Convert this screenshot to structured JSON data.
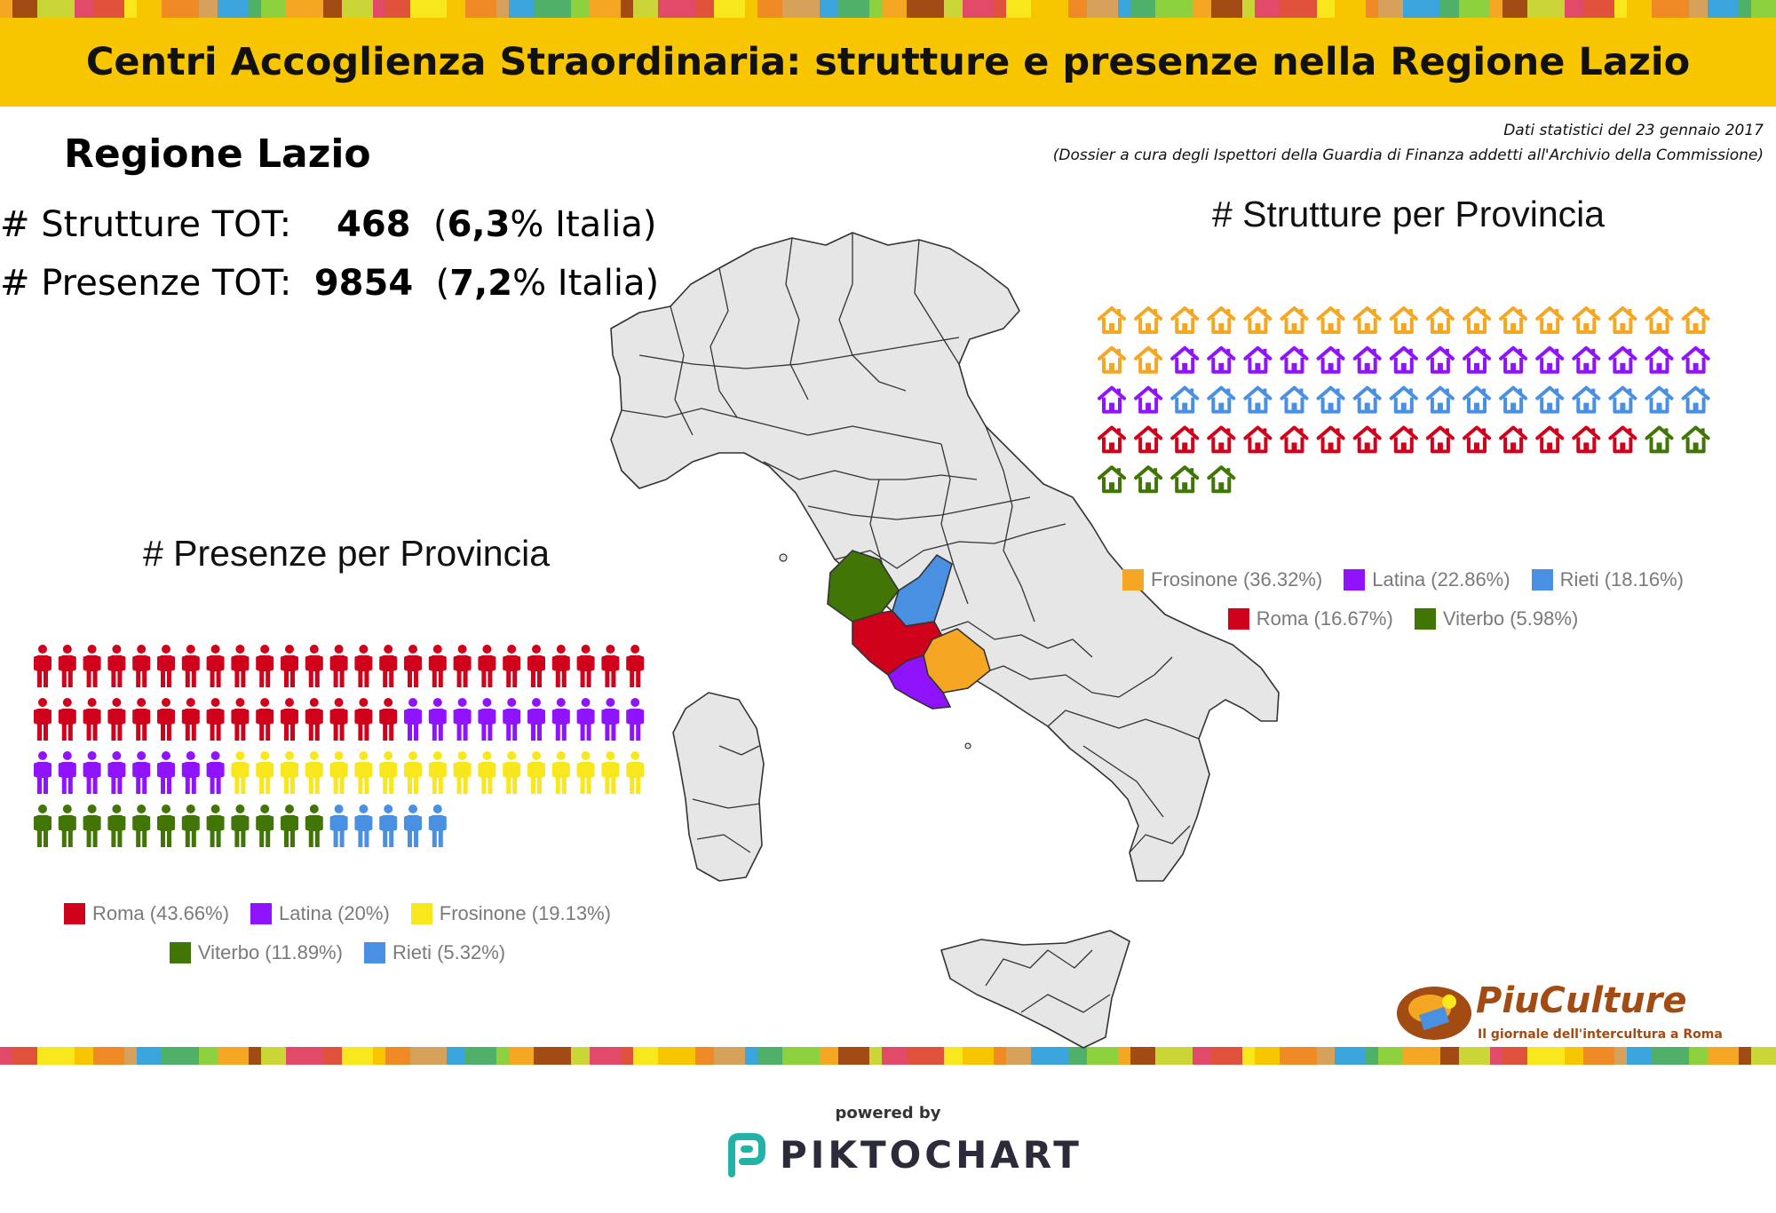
{
  "header": {
    "title": "Centri Accoglienza Straordinaria: strutture e presenze nella Regione Lazio",
    "background": "#f7c600"
  },
  "source": {
    "line1": "Dati statistici del 23 gennaio 2017",
    "line2": "(Dossier a cura degli Ispettori della Guardia di Finanza addetti all'Archivio della Commissione)"
  },
  "region": {
    "title": "Regione Lazio",
    "strutture_label": "# Strutture TOT:",
    "strutture_value": "468",
    "strutture_pct": "6,3",
    "strutture_suffix": "% Italia)",
    "presenze_label": "# Presenze TOT:",
    "presenze_value": "9854",
    "presenze_pct": "7,2",
    "presenze_suffix": "% Italia)"
  },
  "colors": {
    "roma": "#d0021b",
    "latina": "#9013fe",
    "frosinone_presenze": "#f8e71c",
    "frosinone_strutture": "#f5a623",
    "viterbo": "#417505",
    "rieti": "#4a90e2",
    "map_fill": "#e6e6e6",
    "map_stroke": "#333333"
  },
  "chart_data": [
    {
      "type": "pictogram",
      "title": "# Strutture per Provincia",
      "icon": "house-icon",
      "categories": [
        "Frosinone",
        "Latina",
        "Rieti",
        "Roma",
        "Viterbo"
      ],
      "values": [
        36.32,
        22.86,
        18.16,
        16.67,
        5.98
      ],
      "icon_counts": [
        19,
        17,
        15,
        15,
        6
      ],
      "unit": "%",
      "legend": [
        {
          "label": "Frosinone (36.32%)",
          "color": "#f5a623"
        },
        {
          "label": "Latina (22.86%)",
          "color": "#9013fe"
        },
        {
          "label": "Rieti (18.16%)",
          "color": "#4a90e2"
        },
        {
          "label": "Roma (16.67%)",
          "color": "#d0021b"
        },
        {
          "label": "Viterbo (5.98%)",
          "color": "#417505"
        }
      ]
    },
    {
      "type": "pictogram",
      "title": "# Presenze per Provincia",
      "icon": "person-icon",
      "categories": [
        "Roma",
        "Latina",
        "Frosinone",
        "Viterbo",
        "Rieti"
      ],
      "values": [
        43.66,
        20,
        19.13,
        11.89,
        5.32
      ],
      "icon_counts": [
        40,
        18,
        17,
        12,
        5
      ],
      "unit": "%",
      "legend": [
        {
          "label": "Roma (43.66%)",
          "color": "#d0021b"
        },
        {
          "label": "Latina (20%)",
          "color": "#9013fe"
        },
        {
          "label": "Frosinone (19.13%)",
          "color": "#f8e71c"
        },
        {
          "label": "Viterbo (11.89%)",
          "color": "#417505"
        },
        {
          "label": "Rieti (5.32%)",
          "color": "#4a90e2"
        }
      ]
    }
  ],
  "brand": {
    "logo_title": "PiuCulture",
    "logo_subtitle": "Il giornale dell'intercultura a Roma",
    "powered_by": "powered by",
    "piktochart": "PIKTOCHART"
  }
}
